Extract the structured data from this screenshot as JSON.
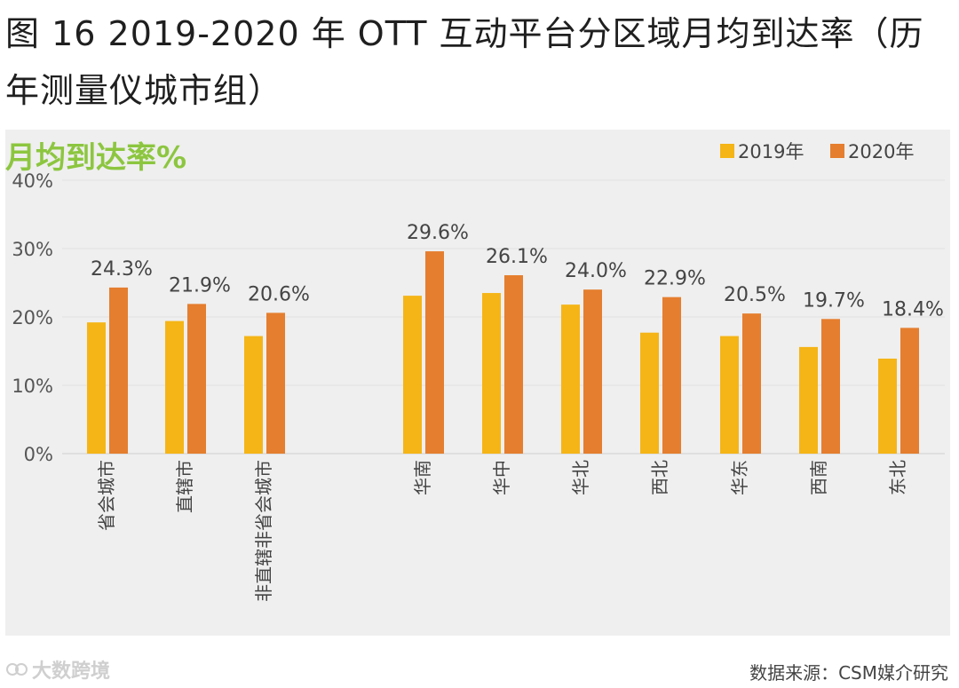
{
  "title": "图 16 2019-2020 年 OTT 互动平台分区域月均到达率（历年测量仪城市组）",
  "source": "数据来源：CSM媒介研究",
  "watermark": "大数跨境",
  "chart_data": {
    "type": "bar",
    "ylabel": "月均到达率%",
    "ylim": [
      0,
      40
    ],
    "yticks": [
      "0%",
      "10%",
      "20%",
      "30%",
      "40%"
    ],
    "categories": [
      "省会城市",
      "直辖市",
      "非直辖非省会城市",
      "华南",
      "华中",
      "华北",
      "西北",
      "华东",
      "西南",
      "东北"
    ],
    "series": [
      {
        "name": "2019年",
        "color": "#f5b516",
        "values": [
          19.2,
          19.4,
          17.2,
          23.1,
          23.5,
          21.8,
          17.7,
          17.2,
          15.6,
          13.9
        ]
      },
      {
        "name": "2020年",
        "color": "#e57e2e",
        "values": [
          24.3,
          21.9,
          20.6,
          29.6,
          26.1,
          24.0,
          22.9,
          20.5,
          19.7,
          18.4
        ]
      }
    ],
    "data_labels": [
      "24.3%",
      "21.9%",
      "20.6%",
      "29.6%",
      "26.1%",
      "24.0%",
      "22.9%",
      "20.5%",
      "19.7%",
      "18.4%"
    ],
    "grid": true,
    "legend": "top-right"
  }
}
